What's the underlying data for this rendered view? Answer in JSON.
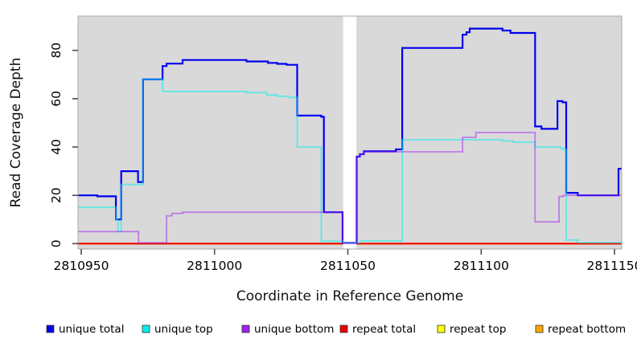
{
  "figure": {
    "background": "#ffffff",
    "panel_background": "#d9d9d9",
    "panel_border": "#a9a9a9",
    "tick_color": "#4d4d4d"
  },
  "chart_data": {
    "type": "line",
    "step": "after",
    "title": "",
    "xlabel": "Coordinate in Reference Genome",
    "ylabel": "Read Coverage Depth",
    "xlim": [
      2810948.8,
      2811152.7
    ],
    "ylim": [
      0,
      94
    ],
    "grid": "off",
    "x_ticks": [
      {
        "value": 2810950,
        "label": "2810950"
      },
      {
        "value": 2811000,
        "label": "2811000"
      },
      {
        "value": 2811050,
        "label": "2811050"
      },
      {
        "value": 2811100,
        "label": "2811100"
      },
      {
        "value": 2811150,
        "label": "2811150"
      }
    ],
    "y_ticks": [
      {
        "value": 0,
        "label": "0"
      },
      {
        "value": 20,
        "label": "20"
      },
      {
        "value": 40,
        "label": "40"
      },
      {
        "value": 60,
        "label": "60"
      },
      {
        "value": 80,
        "label": "80"
      }
    ],
    "masked_region": {
      "from": 2811048.2,
      "to": 2811053.2,
      "color": "#ffffff"
    },
    "series": [
      {
        "name": "unique total",
        "color": "#0000EE",
        "opacity": 1,
        "layer": "unique",
        "points": [
          [
            2810948.8,
            20
          ],
          [
            2810956,
            19.6
          ],
          [
            2810963,
            10
          ],
          [
            2810965,
            30
          ],
          [
            2810971.3,
            25.5
          ],
          [
            2810973.2,
            68
          ],
          [
            2810980.5,
            73.5
          ],
          [
            2810982,
            74.5
          ],
          [
            2810988,
            76
          ],
          [
            2811012,
            75.4
          ],
          [
            2811020,
            74.8
          ],
          [
            2811023.5,
            74.4
          ],
          [
            2811027,
            74
          ],
          [
            2811031,
            53
          ],
          [
            2811040,
            52.5
          ],
          [
            2811041,
            13
          ],
          [
            2811048,
            0.3
          ],
          [
            2811053.3,
            36
          ],
          [
            2811054.5,
            37
          ],
          [
            2811056,
            38.2
          ],
          [
            2811068,
            39
          ],
          [
            2811070.4,
            81
          ],
          [
            2811093,
            86.5
          ],
          [
            2811094.5,
            87.5
          ],
          [
            2811095.7,
            89
          ],
          [
            2811108,
            88.2
          ],
          [
            2811111,
            87.2
          ],
          [
            2811120.2,
            48.5
          ],
          [
            2811122.6,
            47.5
          ],
          [
            2811128.6,
            59
          ],
          [
            2811130.5,
            58.5
          ],
          [
            2811131.9,
            21
          ],
          [
            2811136.2,
            20
          ],
          [
            2811151.5,
            31
          ]
        ]
      },
      {
        "name": "unique top",
        "color": "#00EEEE",
        "opacity": 0.55,
        "layer": "unique",
        "points": [
          [
            2810948.8,
            15
          ],
          [
            2810963,
            10
          ],
          [
            2810963.8,
            5
          ],
          [
            2810965,
            24.5
          ],
          [
            2810973.2,
            68
          ],
          [
            2810980.5,
            63
          ],
          [
            2811012,
            62.5
          ],
          [
            2811019.6,
            61.5
          ],
          [
            2811023.5,
            61
          ],
          [
            2811028,
            60.5
          ],
          [
            2811031,
            40
          ],
          [
            2811040,
            1
          ],
          [
            2811048.1,
            0.4
          ],
          [
            2811055,
            1.1
          ],
          [
            2811070.4,
            43
          ],
          [
            2811108,
            42.5
          ],
          [
            2811112,
            42
          ],
          [
            2811120.2,
            40
          ],
          [
            2811129.8,
            39.5
          ],
          [
            2811130.7,
            39
          ],
          [
            2811131.9,
            1.5
          ],
          [
            2811136.2,
            0.4
          ]
        ]
      },
      {
        "name": "unique bottom",
        "color": "#A020F0",
        "opacity": 0.5,
        "layer": "unique",
        "points": [
          [
            2810948.8,
            5
          ],
          [
            2810971.5,
            0.3
          ],
          [
            2810982,
            11.5
          ],
          [
            2810984,
            12.5
          ],
          [
            2810988,
            13
          ],
          [
            2811048,
            0.3
          ],
          [
            2811053.3,
            36
          ],
          [
            2811054.5,
            37
          ],
          [
            2811056,
            38
          ],
          [
            2811093,
            44
          ],
          [
            2811098,
            46
          ],
          [
            2811120.2,
            9
          ],
          [
            2811129.2,
            19.5
          ],
          [
            2811130.7,
            20
          ]
        ]
      },
      {
        "name": "repeat total",
        "color": "#EE0000",
        "opacity": 1,
        "layer": "repeat",
        "points": [
          [
            2810948.8,
            0
          ]
        ]
      },
      {
        "name": "repeat top",
        "color": "#FFFF00",
        "opacity": 1,
        "layer": "repeat",
        "points": [
          [
            2810948.8,
            0
          ]
        ]
      },
      {
        "name": "repeat bottom",
        "color": "#FFA500",
        "opacity": 1,
        "layer": "repeat",
        "points": [
          [
            2810948.8,
            0
          ]
        ]
      }
    ],
    "legend": {
      "position": "bottom",
      "items": [
        {
          "label": "unique total",
          "color": "#0000EE"
        },
        {
          "label": "unique top",
          "color": "#00EEEE"
        },
        {
          "label": "unique bottom",
          "color": "#A020F0"
        },
        {
          "label": "repeat total",
          "color": "#EE0000"
        },
        {
          "label": "repeat top",
          "color": "#FFFF00"
        },
        {
          "label": "repeat bottom",
          "color": "#FFA500"
        }
      ]
    }
  }
}
